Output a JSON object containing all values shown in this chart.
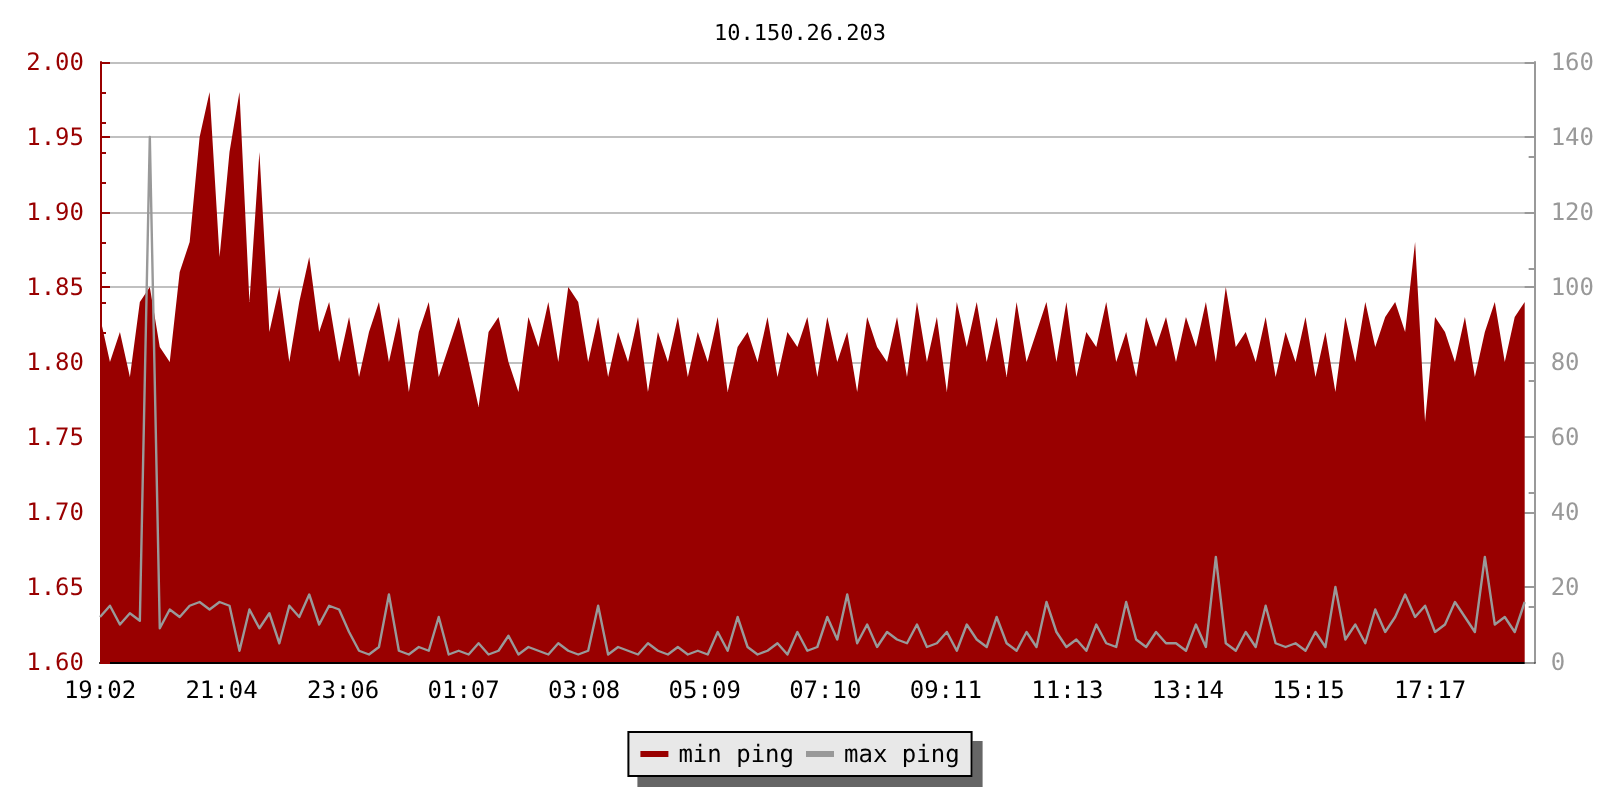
{
  "chart_data": {
    "type": "area",
    "title": "10.150.26.203",
    "x": [
      "--01-01T19:02",
      "--01-01T19:12",
      "--01-01T19:22",
      "--01-01T19:32",
      "--01-01T19:42",
      "--01-01T19:52",
      "--01-01T20:02",
      "--01-01T20:12",
      "--01-01T20:22",
      "--01-01T20:32",
      "--01-01T20:42",
      "--01-01T20:52",
      "--01-01T21:02",
      "--01-01T21:12",
      "--01-01T21:22",
      "--01-01T21:32",
      "--01-01T21:42",
      "--01-01T21:52",
      "--01-01T22:02",
      "--01-01T22:12",
      "--01-01T22:22",
      "--01-01T22:32",
      "--01-01T22:42",
      "--01-01T22:52",
      "--01-01T23:02",
      "--01-01T23:12",
      "--01-01T23:22",
      "--01-01T23:32",
      "--01-01T23:42",
      "--01-01T23:52",
      "--01-02T00:02",
      "--01-02T00:12",
      "--01-02T00:22",
      "--01-02T00:32",
      "--01-02T00:42",
      "--01-02T00:52",
      "--01-02T01:02",
      "--01-02T01:12",
      "--01-02T01:22",
      "--01-02T01:32",
      "--01-02T01:42",
      "--01-02T01:52",
      "--01-02T02:02",
      "--01-02T02:12",
      "--01-02T02:22",
      "--01-02T02:32",
      "--01-02T02:42",
      "--01-02T02:52",
      "--01-02T03:02",
      "--01-02T03:12",
      "--01-02T03:22",
      "--01-02T03:32",
      "--01-02T03:42",
      "--01-02T03:52",
      "--01-02T04:02",
      "--01-02T04:12",
      "--01-02T04:22",
      "--01-02T04:32",
      "--01-02T04:42",
      "--01-02T04:52",
      "--01-02T05:02",
      "--01-02T05:12",
      "--01-02T05:22",
      "--01-02T05:32",
      "--01-02T05:42",
      "--01-02T05:52",
      "--01-02T06:02",
      "--01-02T06:12",
      "--01-02T06:22",
      "--01-02T06:32",
      "--01-02T06:42",
      "--01-02T06:52",
      "--01-02T07:02",
      "--01-02T07:12",
      "--01-02T07:22",
      "--01-02T07:32",
      "--01-02T07:42",
      "--01-02T07:52",
      "--01-02T08:02",
      "--01-02T08:12",
      "--01-02T08:22",
      "--01-02T08:32",
      "--01-02T08:42",
      "--01-02T08:52",
      "--01-02T09:02",
      "--01-02T09:12",
      "--01-02T09:22",
      "--01-02T09:32",
      "--01-02T09:42",
      "--01-02T09:52",
      "--01-02T10:02",
      "--01-02T10:12",
      "--01-02T10:22",
      "--01-02T10:32",
      "--01-02T10:42",
      "--01-02T10:52",
      "--01-02T11:02",
      "--01-02T11:12",
      "--01-02T11:22",
      "--01-02T11:32",
      "--01-02T11:42",
      "--01-02T11:52",
      "--01-02T12:02",
      "--01-02T12:12",
      "--01-02T12:22",
      "--01-02T12:32",
      "--01-02T12:42",
      "--01-02T12:52",
      "--01-02T13:02",
      "--01-02T13:12",
      "--01-02T13:22",
      "--01-02T13:32",
      "--01-02T13:42",
      "--01-02T13:52",
      "--01-02T14:02",
      "--01-02T14:12",
      "--01-02T14:22",
      "--01-02T14:32",
      "--01-02T14:42",
      "--01-02T14:52",
      "--01-02T15:02",
      "--01-02T15:12",
      "--01-02T15:22",
      "--01-02T15:32",
      "--01-02T15:42",
      "--01-02T15:52",
      "--01-02T16:02",
      "--01-02T16:12",
      "--01-02T16:22",
      "--01-02T16:32",
      "--01-02T16:42",
      "--01-02T16:52",
      "--01-02T17:02",
      "--01-02T17:12",
      "--01-02T17:22",
      "--01-02T17:32",
      "--01-02T17:42",
      "--01-02T17:52",
      "--01-02T18:02",
      "--01-02T18:12",
      "--01-02T18:22",
      "--01-02T18:32",
      "--01-02T18:42",
      "--01-02T18:52"
    ],
    "series": [
      {
        "name": "min ping",
        "color": "#990000",
        "values": [
          1.83,
          1.8,
          1.82,
          1.79,
          1.84,
          1.85,
          1.81,
          1.8,
          1.86,
          1.88,
          1.95,
          1.98,
          1.87,
          1.94,
          1.98,
          1.84,
          1.94,
          1.82,
          1.85,
          1.8,
          1.84,
          1.87,
          1.82,
          1.84,
          1.8,
          1.83,
          1.79,
          1.82,
          1.84,
          1.8,
          1.83,
          1.78,
          1.82,
          1.84,
          1.79,
          1.81,
          1.83,
          1.8,
          1.77,
          1.82,
          1.83,
          1.8,
          1.78,
          1.83,
          1.81,
          1.84,
          1.8,
          1.85,
          1.84,
          1.8,
          1.83,
          1.79,
          1.82,
          1.8,
          1.83,
          1.78,
          1.82,
          1.8,
          1.83,
          1.79,
          1.82,
          1.8,
          1.83,
          1.78,
          1.81,
          1.82,
          1.8,
          1.83,
          1.79,
          1.82,
          1.81,
          1.83,
          1.79,
          1.83,
          1.8,
          1.82,
          1.78,
          1.83,
          1.81,
          1.8,
          1.83,
          1.79,
          1.84,
          1.8,
          1.83,
          1.78,
          1.84,
          1.81,
          1.84,
          1.8,
          1.83,
          1.79,
          1.84,
          1.8,
          1.82,
          1.84,
          1.8,
          1.84,
          1.79,
          1.82,
          1.81,
          1.84,
          1.8,
          1.82,
          1.79,
          1.83,
          1.81,
          1.83,
          1.8,
          1.83,
          1.81,
          1.84,
          1.8,
          1.85,
          1.81,
          1.82,
          1.8,
          1.83,
          1.79,
          1.82,
          1.8,
          1.83,
          1.79,
          1.82,
          1.78,
          1.83,
          1.8,
          1.84,
          1.81,
          1.83,
          1.84,
          1.82,
          1.88,
          1.76,
          1.83,
          1.82,
          1.8,
          1.83,
          1.79,
          1.82,
          1.84,
          1.8,
          1.83,
          1.84
        ]
      },
      {
        "name": "max ping",
        "type": "line",
        "axis": "y2",
        "color": "#999999",
        "values": [
          12,
          15,
          10,
          13,
          11,
          140,
          9,
          14,
          12,
          15,
          16,
          14,
          16,
          15,
          3,
          14,
          9,
          13,
          5,
          15,
          12,
          18,
          10,
          15,
          14,
          8,
          3,
          2,
          4,
          18,
          3,
          2,
          4,
          3,
          12,
          2,
          3,
          2,
          5,
          2,
          3,
          7,
          2,
          4,
          3,
          2,
          5,
          3,
          2,
          3,
          15,
          2,
          4,
          3,
          2,
          5,
          3,
          2,
          4,
          2,
          3,
          2,
          8,
          3,
          12,
          4,
          2,
          3,
          5,
          2,
          8,
          3,
          4,
          12,
          6,
          18,
          5,
          10,
          4,
          8,
          6,
          5,
          10,
          4,
          5,
          8,
          3,
          10,
          6,
          4,
          12,
          5,
          3,
          8,
          4,
          16,
          8,
          4,
          6,
          3,
          10,
          5,
          4,
          16,
          6,
          4,
          8,
          5,
          5,
          3,
          10,
          4,
          28,
          5,
          3,
          8,
          4,
          15,
          5,
          4,
          5,
          3,
          8,
          4,
          20,
          6,
          10,
          5,
          14,
          8,
          12,
          18,
          12,
          15,
          8,
          10,
          16,
          12,
          8,
          28,
          10,
          12,
          8,
          16
        ]
      }
    ],
    "xlim": [
      "--01-01T19:02",
      "--01-02T19:02"
    ],
    "xticks": [
      {
        "value": "--01-01T19:02",
        "label": "19:02"
      },
      {
        "value": "--01-01T21:04",
        "label": "21:04"
      },
      {
        "value": "--01-01T23:06",
        "label": "23:06"
      },
      {
        "value": "--01-02T01:07",
        "label": "01:07"
      },
      {
        "value": "--01-02T03:08",
        "label": "03:08"
      },
      {
        "value": "--01-02T05:09",
        "label": "05:09"
      },
      {
        "value": "--01-02T07:10",
        "label": "07:10"
      },
      {
        "value": "--01-02T09:11",
        "label": "09:11"
      },
      {
        "value": "--01-02T11:13",
        "label": "11:13"
      },
      {
        "value": "--01-02T13:14",
        "label": "13:14"
      },
      {
        "value": "--01-02T15:15",
        "label": "15:15"
      },
      {
        "value": "--01-02T17:17",
        "label": "17:17"
      }
    ],
    "ylim": [
      1.6,
      2.0
    ],
    "yticks": [
      {
        "value": 1.6,
        "label": "1.60"
      },
      {
        "value": 1.65,
        "label": "1.65"
      },
      {
        "value": 1.7,
        "label": "1.70"
      },
      {
        "value": 1.75,
        "label": "1.75"
      },
      {
        "value": 1.8,
        "label": "1.80"
      },
      {
        "value": 1.85,
        "label": "1.85"
      },
      {
        "value": 1.9,
        "label": "1.90"
      },
      {
        "value": 1.95,
        "label": "1.95"
      },
      {
        "value": 2.0,
        "label": "2.00"
      }
    ],
    "y2lim": [
      0,
      160
    ],
    "y2ticks": [
      0,
      20,
      40,
      60,
      80,
      100,
      120,
      140,
      160
    ],
    "grid": "y",
    "legend": "bottom",
    "marker": "none"
  }
}
